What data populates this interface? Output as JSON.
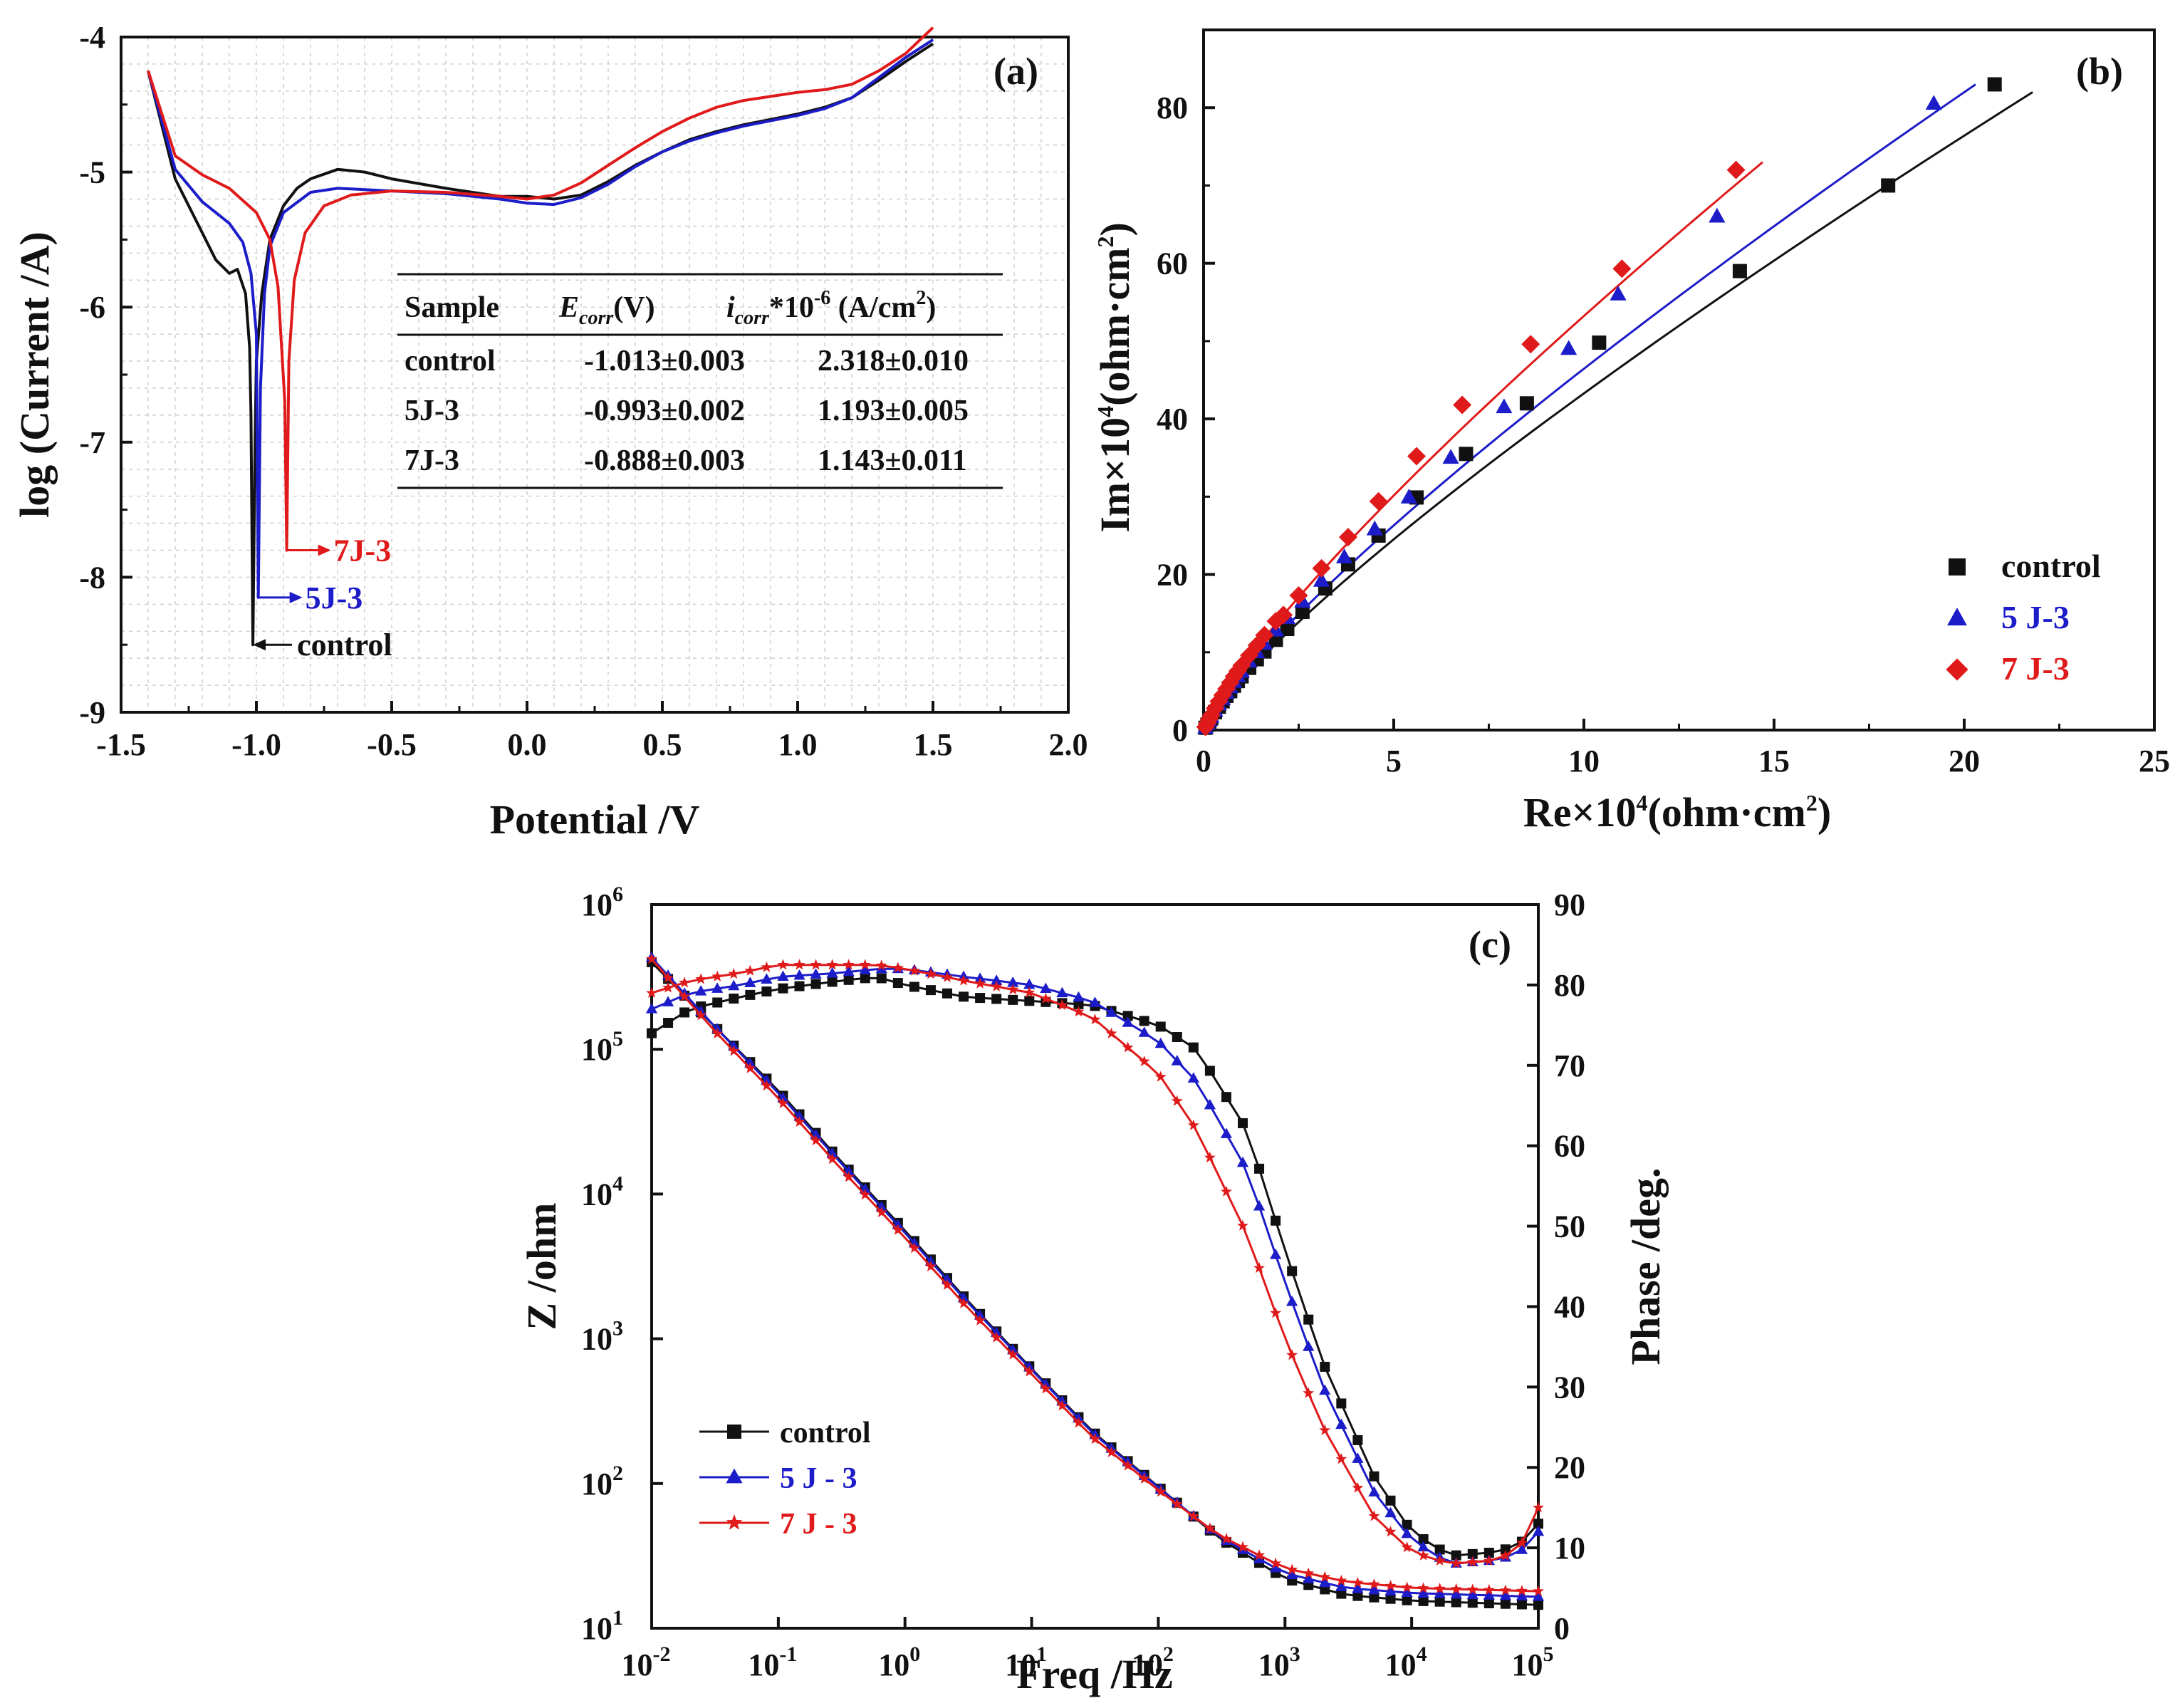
{
  "chart_data": [
    {
      "panel": "(a)",
      "type": "line",
      "xlabel": "Potential /V",
      "ylabel": "log (Current /A)",
      "xlim": [
        -1.5,
        2.0
      ],
      "ylim": [
        -9,
        -4
      ],
      "xticks": [
        "-1.5",
        "-1.0",
        "-0.5",
        "0.0",
        "0.5",
        "1.0",
        "1.5",
        "2.0"
      ],
      "yticks": [
        "-9",
        "-8",
        "-7",
        "-6",
        "-5",
        "-4"
      ],
      "grid": true,
      "series": [
        {
          "name": "control",
          "color": "#111111",
          "x": [
            -1.4,
            -1.3,
            -1.2,
            -1.15,
            -1.1,
            -1.07,
            -1.04,
            -1.025,
            -1.02,
            -1.013,
            -1.005,
            -1.0,
            -0.98,
            -0.95,
            -0.9,
            -0.85,
            -0.8,
            -0.7,
            -0.6,
            -0.5,
            -0.3,
            -0.1,
            0.0,
            0.1,
            0.2,
            0.3,
            0.4,
            0.5,
            0.6,
            0.7,
            0.8,
            0.9,
            1.0,
            1.1,
            1.2,
            1.3,
            1.4,
            1.5
          ],
          "y": [
            -4.25,
            -5.05,
            -5.45,
            -5.65,
            -5.75,
            -5.72,
            -5.9,
            -6.3,
            -6.8,
            -8.5,
            -7.0,
            -6.4,
            -5.9,
            -5.5,
            -5.25,
            -5.12,
            -5.05,
            -4.98,
            -5.0,
            -5.05,
            -5.12,
            -5.18,
            -5.18,
            -5.2,
            -5.17,
            -5.07,
            -4.95,
            -4.85,
            -4.76,
            -4.7,
            -4.65,
            -4.61,
            -4.57,
            -4.52,
            -4.45,
            -4.32,
            -4.18,
            -4.05
          ]
        },
        {
          "name": "5J-3",
          "color": "#1c1cc9",
          "x": [
            -1.4,
            -1.3,
            -1.2,
            -1.1,
            -1.05,
            -1.02,
            -1.0,
            -0.993,
            -0.985,
            -0.97,
            -0.95,
            -0.9,
            -0.8,
            -0.7,
            -0.6,
            -0.5,
            -0.3,
            -0.1,
            0.0,
            0.1,
            0.2,
            0.3,
            0.4,
            0.5,
            0.6,
            0.7,
            0.8,
            0.9,
            1.0,
            1.1,
            1.2,
            1.3,
            1.4,
            1.5
          ],
          "y": [
            -4.25,
            -4.98,
            -5.22,
            -5.38,
            -5.52,
            -5.75,
            -6.2,
            -8.15,
            -6.6,
            -5.9,
            -5.55,
            -5.3,
            -5.15,
            -5.12,
            -5.13,
            -5.14,
            -5.16,
            -5.2,
            -5.23,
            -5.24,
            -5.19,
            -5.09,
            -4.96,
            -4.85,
            -4.77,
            -4.71,
            -4.66,
            -4.62,
            -4.58,
            -4.53,
            -4.45,
            -4.3,
            -4.15,
            -4.02
          ]
        },
        {
          "name": "7J-3",
          "color": "#e01a1a",
          "x": [
            -1.4,
            -1.3,
            -1.2,
            -1.1,
            -1.0,
            -0.95,
            -0.92,
            -0.895,
            -0.888,
            -0.88,
            -0.86,
            -0.82,
            -0.75,
            -0.65,
            -0.5,
            -0.3,
            -0.1,
            0.0,
            0.1,
            0.2,
            0.3,
            0.4,
            0.5,
            0.6,
            0.7,
            0.8,
            0.9,
            1.0,
            1.1,
            1.2,
            1.3,
            1.4,
            1.5
          ],
          "y": [
            -4.25,
            -4.88,
            -5.02,
            -5.12,
            -5.3,
            -5.5,
            -5.85,
            -6.7,
            -7.8,
            -6.4,
            -5.8,
            -5.45,
            -5.25,
            -5.17,
            -5.14,
            -5.15,
            -5.18,
            -5.2,
            -5.17,
            -5.08,
            -4.95,
            -4.82,
            -4.7,
            -4.6,
            -4.52,
            -4.47,
            -4.44,
            -4.41,
            -4.39,
            -4.35,
            -4.25,
            -4.12,
            -3.93
          ]
        }
      ],
      "annotations": [
        {
          "text": "7J-3",
          "color": "#e01a1a",
          "x": -0.888,
          "y": -7.8
        },
        {
          "text": "5J-3",
          "color": "#1c1cc9",
          "x": -0.993,
          "y": -8.15
        },
        {
          "text": "control",
          "color": "#111111",
          "x": -1.013,
          "y": -8.5
        }
      ],
      "table": {
        "headers": [
          "Sample",
          "E",
          "corr",
          "(V)",
          "i",
          "corr",
          "*10",
          "-6",
          " (A/cm",
          "2",
          ")"
        ],
        "rows": [
          [
            "control",
            "-1.013±0.003",
            "2.318±0.010"
          ],
          [
            "5J-3",
            "-0.993±0.002",
            "1.193±0.005"
          ],
          [
            "7J-3",
            "-0.888±0.003",
            "1.143±0.011"
          ]
        ]
      }
    },
    {
      "panel": "(b)",
      "type": "scatter",
      "xlabel_parts": [
        "Re×10",
        "4",
        "(ohm·cm",
        "2",
        ")"
      ],
      "ylabel_parts": [
        "Im×10",
        "4",
        "(ohm·cm",
        "2",
        ")"
      ],
      "xlim": [
        0,
        25
      ],
      "ylim": [
        0,
        90
      ],
      "xticks": [
        "0",
        "5",
        "10",
        "15",
        "20",
        "25"
      ],
      "yticks": [
        "0",
        "20",
        "40",
        "60",
        "80"
      ],
      "legend": "right",
      "series": [
        {
          "name": "control",
          "color": "#111111",
          "marker": "square",
          "x": [
            0.05,
            0.1,
            0.15,
            0.2,
            0.3,
            0.4,
            0.5,
            0.6,
            0.7,
            0.8,
            0.9,
            1.0,
            1.2,
            1.4,
            1.6,
            1.9,
            2.2,
            2.6,
            3.2,
            3.8,
            4.6,
            5.6,
            6.9,
            8.5,
            10.4,
            14.1,
            18.0,
            20.8
          ],
          "y": [
            0.3,
            0.7,
            1.1,
            1.5,
            2.3,
            3.0,
            3.7,
            4.4,
            5.0,
            5.7,
            6.3,
            6.9,
            8.0,
            9.1,
            10.1,
            11.6,
            13.0,
            15.2,
            18.2,
            21.3,
            25.0,
            29.9,
            35.5,
            42.0,
            49.8,
            59.0,
            70.0,
            83.0
          ]
        },
        {
          "name": "5 J-3",
          "color": "#1c1cc9",
          "marker": "triangle",
          "x": [
            0.05,
            0.1,
            0.15,
            0.2,
            0.3,
            0.4,
            0.5,
            0.6,
            0.7,
            0.8,
            0.9,
            1.0,
            1.2,
            1.4,
            1.6,
            1.9,
            2.2,
            2.6,
            3.1,
            3.7,
            4.5,
            5.4,
            6.5,
            7.9,
            9.6,
            10.9,
            13.5,
            19.2
          ],
          "y": [
            0.3,
            0.8,
            1.2,
            1.7,
            2.5,
            3.3,
            4.0,
            4.8,
            5.5,
            6.2,
            6.9,
            7.5,
            8.8,
            10.0,
            11.1,
            12.8,
            14.4,
            16.5,
            19.2,
            22.2,
            25.8,
            29.9,
            35.0,
            41.5,
            49.0,
            56.0,
            66.0,
            80.5
          ]
        },
        {
          "name": "7 J-3",
          "color": "#e01a1a",
          "marker": "diamond",
          "x": [
            0.05,
            0.1,
            0.15,
            0.2,
            0.3,
            0.4,
            0.5,
            0.6,
            0.7,
            0.8,
            0.9,
            1.0,
            1.2,
            1.4,
            1.6,
            1.9,
            2.1,
            2.5,
            3.1,
            3.8,
            4.6,
            5.6,
            6.8,
            8.6,
            11.0,
            14.0
          ],
          "y": [
            0.4,
            0.9,
            1.4,
            1.9,
            2.8,
            3.7,
            4.5,
            5.3,
            6.1,
            6.9,
            7.6,
            8.3,
            9.6,
            10.9,
            12.2,
            14.0,
            14.8,
            17.3,
            20.8,
            24.8,
            29.4,
            35.2,
            41.8,
            49.6,
            59.3,
            72.0
          ]
        }
      ],
      "fits": [
        {
          "name": "control",
          "color": "#111111",
          "xmax": 21.8,
          "ymax": 82
        },
        {
          "name": "5 J-3",
          "color": "#1c1cc9",
          "xmax": 20.3,
          "ymax": 83
        },
        {
          "name": "7 J-3",
          "color": "#e01a1a",
          "xmax": 14.7,
          "ymax": 73
        }
      ]
    },
    {
      "panel": "(c)",
      "type": "line",
      "xlabel": "Freq /Hz",
      "ylabel": "Z /ohm",
      "y2label": "Phase /deg.",
      "x_scale": "log",
      "y_scale": "log",
      "xlim": [
        0.01,
        100000
      ],
      "ylim": [
        10,
        1000000
      ],
      "y2lim": [
        0,
        90
      ],
      "xticks": [
        [
          "10",
          "-2"
        ],
        [
          "10",
          "-1"
        ],
        [
          "10",
          "0"
        ],
        [
          "10",
          "1"
        ],
        [
          "10",
          "2"
        ],
        [
          "10",
          "3"
        ],
        [
          "10",
          "4"
        ],
        [
          "10",
          "5"
        ]
      ],
      "yticks": [
        [
          "10",
          "1"
        ],
        [
          "10",
          "2"
        ],
        [
          "10",
          "3"
        ],
        [
          "10",
          "4"
        ],
        [
          "10",
          "5"
        ],
        [
          "10",
          "6"
        ]
      ],
      "y2ticks": [
        "0",
        "10",
        "20",
        "30",
        "40",
        "50",
        "60",
        "70",
        "80",
        "90"
      ],
      "legend": "lower-left",
      "series": [
        {
          "name": "control",
          "color": "#111111",
          "marker": "square",
          "impedance": {
            "x": [
              0.01,
              0.03,
              0.1,
              0.3,
              1,
              3,
              10,
              30,
              100,
              300,
              1000,
              3000,
              10000,
              30000,
              100000
            ],
            "y": [
              400000,
              150000,
              52000,
              17500,
              5600,
              1900,
              620,
              230,
              95,
              42,
              22,
              17,
              15.5,
              15,
              14.5
            ]
          },
          "phase": {
            "x": [
              0.01,
              0.02,
              0.05,
              0.1,
              0.3,
              0.6,
              1,
              3,
              10,
              30,
              100,
              200,
              500,
              1000,
              2000,
              5000,
              10000,
              20000,
              50000,
              80000,
              100000
            ],
            "y": [
              74,
              77,
              78.5,
              79.5,
              80.5,
              81,
              80,
              78.5,
              78,
              77.5,
              75,
              72,
              62,
              47,
              33,
              19,
              12,
              9,
              9.5,
              11,
              13
            ]
          }
        },
        {
          "name": "5 J - 3",
          "color": "#1c1cc9",
          "marker": "triangle",
          "impedance": {
            "x": [
              0.01,
              0.03,
              0.1,
              0.3,
              1,
              3,
              10,
              30,
              100,
              300,
              1000,
              3000,
              10000,
              30000,
              100000
            ],
            "y": [
              430000,
              150000,
              50000,
              17000,
              5400,
              1850,
              610,
              225,
              94,
              43,
              24,
              19,
              17.5,
              17,
              16.5
            ]
          },
          "phase": {
            "x": [
              0.01,
              0.02,
              0.05,
              0.1,
              0.3,
              0.6,
              1,
              3,
              10,
              30,
              100,
              200,
              500,
              1000,
              2000,
              5000,
              10000,
              20000,
              50000,
              80000,
              100000
            ],
            "y": [
              77,
              79,
              80,
              81,
              81.5,
              82,
              82,
              81,
              80,
              78,
              73,
              68,
              57,
              43,
              30,
              17,
              11,
              8,
              8.5,
              10,
              12
            ]
          }
        },
        {
          "name": "7 J - 3",
          "color": "#e01a1a",
          "marker": "star",
          "impedance": {
            "x": [
              0.01,
              0.03,
              0.1,
              0.3,
              1,
              3,
              10,
              30,
              100,
              300,
              1000,
              3000,
              10000,
              30000,
              100000
            ],
            "y": [
              420000,
              140000,
              46000,
              15500,
              5000,
              1700,
              570,
              210,
              90,
              44,
              26,
              21,
              19,
              18.5,
              18
            ]
          },
          "phase": {
            "x": [
              0.01,
              0.02,
              0.05,
              0.1,
              0.3,
              0.6,
              1,
              3,
              10,
              30,
              100,
              200,
              500,
              1000,
              2000,
              5000,
              10000,
              20000,
              50000,
              80000,
              100000
            ],
            "y": [
              79,
              80.5,
              81.5,
              82.5,
              82.5,
              82.5,
              82,
              80.5,
              79,
              76,
              69,
              62,
              49,
              36,
              25,
              14,
              9.5,
              8,
              8.5,
              11,
              15
            ]
          }
        }
      ]
    }
  ]
}
